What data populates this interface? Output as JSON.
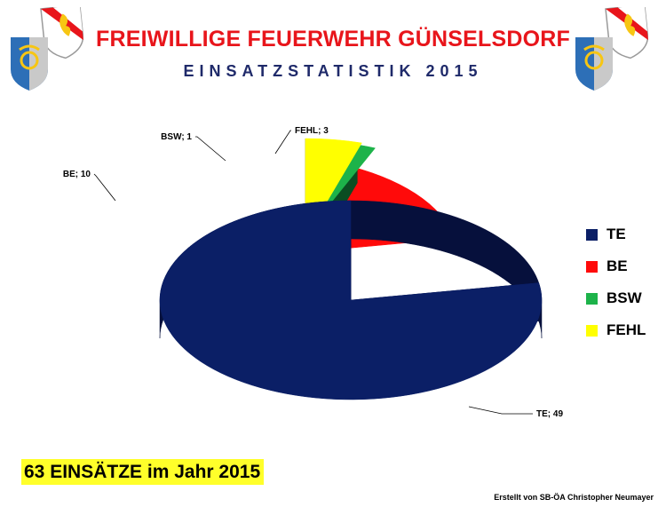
{
  "header": {
    "title": "FREIWILLIGE FEUERWEHR GÜNSELSDORF",
    "subtitle": "EINSATZSTATISTIK 2015"
  },
  "logos": {
    "icon": "fire-brigade-emblem"
  },
  "chart_data": {
    "type": "pie",
    "style": "3d-exploded",
    "categories": [
      "TE",
      "BE",
      "BSW",
      "FEHL"
    ],
    "values": [
      49,
      10,
      1,
      3
    ],
    "colors": [
      "#0b1f66",
      "#ff0a0a",
      "#1db34a",
      "#ffff00"
    ],
    "side_colors": [
      "#06103c",
      "#6e0000",
      "#0b4d22",
      "#7a7a00"
    ],
    "data_labels": [
      "TE; 49",
      "BE; 10",
      "BSW; 1",
      "FEHL; 3"
    ],
    "legend_position": "right"
  },
  "footer": {
    "summary": "63 EINSÄTZE im Jahr 2015",
    "credit": "Erstellt von SB-ÖA Christopher Neumayer"
  }
}
